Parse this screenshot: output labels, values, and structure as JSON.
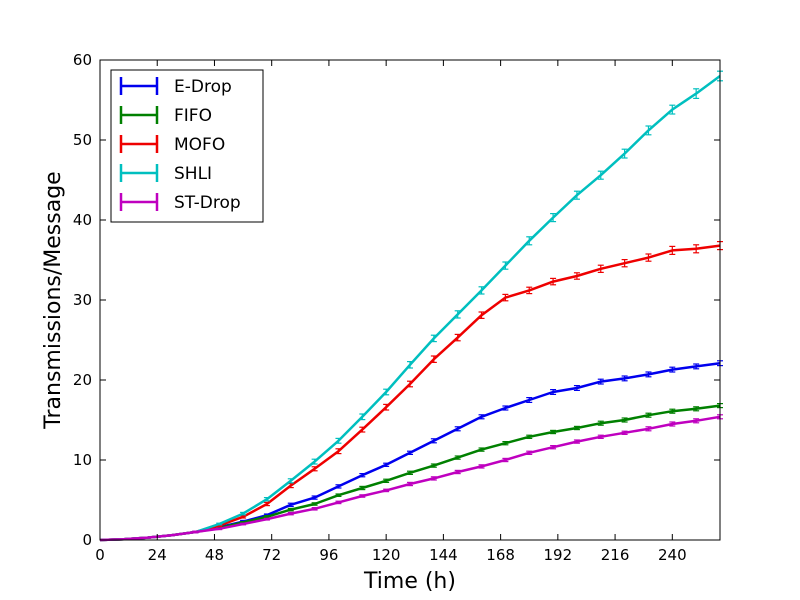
{
  "chart_data": {
    "type": "line",
    "title": "",
    "xlabel": "Time (h)",
    "ylabel": "Transmissions/Message",
    "xlim": [
      0,
      260
    ],
    "ylim": [
      0,
      60
    ],
    "xticks": [
      0,
      24,
      48,
      72,
      96,
      120,
      144,
      168,
      192,
      216,
      240
    ],
    "yticks": [
      0,
      10,
      20,
      30,
      40,
      50,
      60
    ],
    "legend_position": "top-left",
    "grid": false,
    "x": [
      0,
      10,
      20,
      30,
      40,
      50,
      60,
      70,
      80,
      90,
      100,
      110,
      120,
      130,
      140,
      150,
      160,
      170,
      180,
      190,
      200,
      210,
      220,
      230,
      240,
      250,
      260
    ],
    "series": [
      {
        "name": "E-Drop",
        "color": "#0000ee",
        "values": [
          0,
          0.1,
          0.3,
          0.6,
          1.0,
          1.6,
          2.3,
          3.1,
          4.4,
          5.3,
          6.7,
          8.1,
          9.4,
          10.9,
          12.4,
          13.9,
          15.4,
          16.5,
          17.5,
          18.5,
          19.0,
          19.8,
          20.2,
          20.7,
          21.3,
          21.7,
          22.1
        ],
        "errors": [
          0,
          0.05,
          0.05,
          0.05,
          0.1,
          0.1,
          0.15,
          0.15,
          0.2,
          0.2,
          0.2,
          0.2,
          0.2,
          0.2,
          0.25,
          0.25,
          0.25,
          0.25,
          0.3,
          0.3,
          0.3,
          0.3,
          0.3,
          0.3,
          0.3,
          0.3,
          0.3
        ]
      },
      {
        "name": "FIFO",
        "color": "#008000",
        "values": [
          0,
          0.1,
          0.3,
          0.6,
          1.0,
          1.5,
          2.2,
          2.9,
          3.8,
          4.5,
          5.6,
          6.5,
          7.4,
          8.4,
          9.3,
          10.3,
          11.3,
          12.1,
          12.9,
          13.5,
          14.0,
          14.6,
          15.0,
          15.6,
          16.1,
          16.4,
          16.8
        ],
        "errors": [
          0,
          0.05,
          0.05,
          0.05,
          0.1,
          0.1,
          0.1,
          0.15,
          0.15,
          0.15,
          0.15,
          0.2,
          0.2,
          0.2,
          0.2,
          0.2,
          0.2,
          0.2,
          0.2,
          0.2,
          0.2,
          0.25,
          0.25,
          0.25,
          0.25,
          0.25,
          0.25
        ]
      },
      {
        "name": "MOFO",
        "color": "#ee0000",
        "values": [
          0,
          0.1,
          0.3,
          0.6,
          1.0,
          1.8,
          2.9,
          4.5,
          6.8,
          8.9,
          11.1,
          13.8,
          16.6,
          19.5,
          22.6,
          25.3,
          28.1,
          30.3,
          31.2,
          32.3,
          33.0,
          33.9,
          34.6,
          35.3,
          36.2,
          36.4,
          36.8
        ],
        "errors": [
          0,
          0.05,
          0.05,
          0.05,
          0.1,
          0.1,
          0.15,
          0.2,
          0.25,
          0.25,
          0.3,
          0.3,
          0.35,
          0.35,
          0.4,
          0.4,
          0.4,
          0.4,
          0.4,
          0.4,
          0.4,
          0.45,
          0.45,
          0.45,
          0.5,
          0.5,
          0.5
        ]
      },
      {
        "name": "SHLI",
        "color": "#00bfbf",
        "values": [
          0,
          0.1,
          0.3,
          0.6,
          1.0,
          2.0,
          3.3,
          5.1,
          7.4,
          9.8,
          12.4,
          15.4,
          18.5,
          21.9,
          25.2,
          28.2,
          31.2,
          34.3,
          37.4,
          40.3,
          43.1,
          45.6,
          48.3,
          51.2,
          53.8,
          55.8,
          58.0
        ],
        "errors": [
          0,
          0.05,
          0.05,
          0.05,
          0.1,
          0.1,
          0.15,
          0.2,
          0.25,
          0.3,
          0.3,
          0.35,
          0.35,
          0.4,
          0.4,
          0.45,
          0.45,
          0.45,
          0.5,
          0.5,
          0.5,
          0.5,
          0.55,
          0.55,
          0.55,
          0.6,
          0.6
        ]
      },
      {
        "name": "ST-Drop",
        "color": "#bf00bf",
        "values": [
          0,
          0.1,
          0.3,
          0.6,
          1.0,
          1.4,
          2.0,
          2.6,
          3.3,
          3.9,
          4.7,
          5.5,
          6.2,
          7.0,
          7.7,
          8.5,
          9.2,
          10.0,
          10.9,
          11.6,
          12.3,
          12.9,
          13.4,
          13.9,
          14.5,
          14.9,
          15.4
        ],
        "errors": [
          0,
          0.05,
          0.05,
          0.05,
          0.1,
          0.1,
          0.1,
          0.1,
          0.15,
          0.15,
          0.15,
          0.15,
          0.15,
          0.2,
          0.2,
          0.2,
          0.2,
          0.2,
          0.2,
          0.2,
          0.2,
          0.2,
          0.2,
          0.25,
          0.25,
          0.25,
          0.25
        ]
      }
    ]
  }
}
